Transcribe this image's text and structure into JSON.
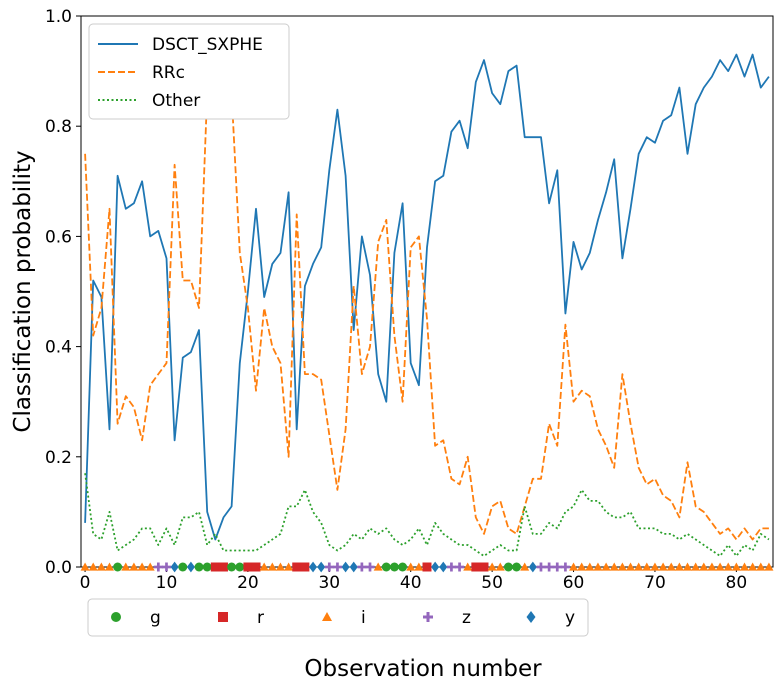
{
  "chart_data": {
    "type": "line",
    "xlabel": "Observation number",
    "ylabel": "Classification probability",
    "xlim": [
      -0.5,
      84.5
    ],
    "ylim": [
      0.0,
      1.0
    ],
    "xticks": [
      "0",
      "10",
      "20",
      "30",
      "40",
      "50",
      "60",
      "70",
      "80"
    ],
    "yticks": [
      "0.0",
      "0.2",
      "0.4",
      "0.6",
      "0.8",
      "1.0"
    ],
    "grid": false,
    "legend_position": "top-left",
    "series": [
      {
        "name": "DSCT_SXPHE",
        "color": "#1f77b4",
        "style": "solid",
        "values": [
          0.08,
          0.52,
          0.49,
          0.25,
          0.71,
          0.65,
          0.66,
          0.7,
          0.6,
          0.61,
          0.56,
          0.23,
          0.38,
          0.39,
          0.43,
          0.1,
          0.05,
          0.09,
          0.11,
          0.37,
          0.5,
          0.65,
          0.49,
          0.55,
          0.57,
          0.68,
          0.25,
          0.51,
          0.55,
          0.58,
          0.72,
          0.83,
          0.71,
          0.43,
          0.6,
          0.53,
          0.35,
          0.3,
          0.57,
          0.66,
          0.37,
          0.33,
          0.58,
          0.7,
          0.71,
          0.79,
          0.81,
          0.76,
          0.88,
          0.92,
          0.86,
          0.84,
          0.9,
          0.91,
          0.78,
          0.78,
          0.78,
          0.66,
          0.72,
          0.46,
          0.59,
          0.54,
          0.57,
          0.63,
          0.68,
          0.74,
          0.56,
          0.65,
          0.75,
          0.78,
          0.77,
          0.81,
          0.82,
          0.87,
          0.75,
          0.84,
          0.87,
          0.89,
          0.92,
          0.9,
          0.93,
          0.89,
          0.93,
          0.87,
          0.89
        ]
      },
      {
        "name": "RRc",
        "color": "#ff7f0e",
        "style": "dashed",
        "values": [
          0.75,
          0.42,
          0.47,
          0.65,
          0.26,
          0.31,
          0.29,
          0.23,
          0.33,
          0.35,
          0.37,
          0.73,
          0.52,
          0.52,
          0.47,
          0.86,
          0.88,
          0.88,
          0.86,
          0.57,
          0.47,
          0.32,
          0.47,
          0.4,
          0.37,
          0.2,
          0.64,
          0.35,
          0.35,
          0.34,
          0.24,
          0.14,
          0.25,
          0.51,
          0.35,
          0.4,
          0.59,
          0.63,
          0.42,
          0.3,
          0.58,
          0.6,
          0.45,
          0.22,
          0.23,
          0.16,
          0.15,
          0.2,
          0.09,
          0.06,
          0.11,
          0.12,
          0.07,
          0.06,
          0.11,
          0.16,
          0.16,
          0.26,
          0.22,
          0.44,
          0.3,
          0.32,
          0.31,
          0.25,
          0.22,
          0.18,
          0.35,
          0.26,
          0.18,
          0.15,
          0.16,
          0.13,
          0.12,
          0.09,
          0.19,
          0.11,
          0.1,
          0.08,
          0.06,
          0.07,
          0.05,
          0.07,
          0.05,
          0.07,
          0.07
        ]
      },
      {
        "name": "Other",
        "color": "#2ca02c",
        "style": "dotted",
        "values": [
          0.17,
          0.06,
          0.05,
          0.1,
          0.03,
          0.04,
          0.05,
          0.07,
          0.07,
          0.04,
          0.07,
          0.04,
          0.09,
          0.09,
          0.1,
          0.04,
          0.06,
          0.03,
          0.03,
          0.03,
          0.03,
          0.03,
          0.04,
          0.05,
          0.06,
          0.11,
          0.11,
          0.14,
          0.1,
          0.08,
          0.04,
          0.03,
          0.04,
          0.06,
          0.05,
          0.07,
          0.06,
          0.07,
          0.05,
          0.04,
          0.05,
          0.07,
          0.04,
          0.08,
          0.06,
          0.05,
          0.04,
          0.04,
          0.03,
          0.02,
          0.03,
          0.04,
          0.03,
          0.03,
          0.11,
          0.06,
          0.06,
          0.08,
          0.07,
          0.1,
          0.11,
          0.14,
          0.12,
          0.12,
          0.1,
          0.09,
          0.09,
          0.1,
          0.07,
          0.07,
          0.07,
          0.06,
          0.06,
          0.05,
          0.06,
          0.05,
          0.04,
          0.03,
          0.02,
          0.04,
          0.02,
          0.04,
          0.03,
          0.06,
          0.05
        ]
      }
    ],
    "bands": [
      {
        "name": "g",
        "color": "#2ca02c",
        "marker": "circle"
      },
      {
        "name": "r",
        "color": "#d62728",
        "marker": "square"
      },
      {
        "name": "i",
        "color": "#ff7f0e",
        "marker": "triangle"
      },
      {
        "name": "z",
        "color": "#9467bd",
        "marker": "plus"
      },
      {
        "name": "y",
        "color": "#1f77b4",
        "marker": "diamond"
      }
    ],
    "observation_bands": [
      "i",
      "i",
      "i",
      "i",
      "g",
      "i",
      "i",
      "i",
      "i",
      "z",
      "z",
      "y",
      "g",
      "y",
      "g",
      "g",
      "r",
      "r",
      "g",
      "g",
      "r",
      "r",
      "i",
      "i",
      "i",
      "i",
      "r",
      "r",
      "y",
      "y",
      "z",
      "z",
      "y",
      "y",
      "z",
      "z",
      "i",
      "g",
      "g",
      "g",
      "i",
      "i",
      "r",
      "y",
      "y",
      "z",
      "z",
      "i",
      "r",
      "r",
      "i",
      "i",
      "g",
      "g",
      "i",
      "y",
      "z",
      "z",
      "z",
      "z",
      "i",
      "i",
      "i",
      "i",
      "i",
      "i",
      "i",
      "i",
      "i",
      "i",
      "i",
      "i",
      "i",
      "i",
      "i",
      "i",
      "i",
      "i",
      "i",
      "i",
      "i",
      "i",
      "i",
      "i",
      "i"
    ]
  }
}
